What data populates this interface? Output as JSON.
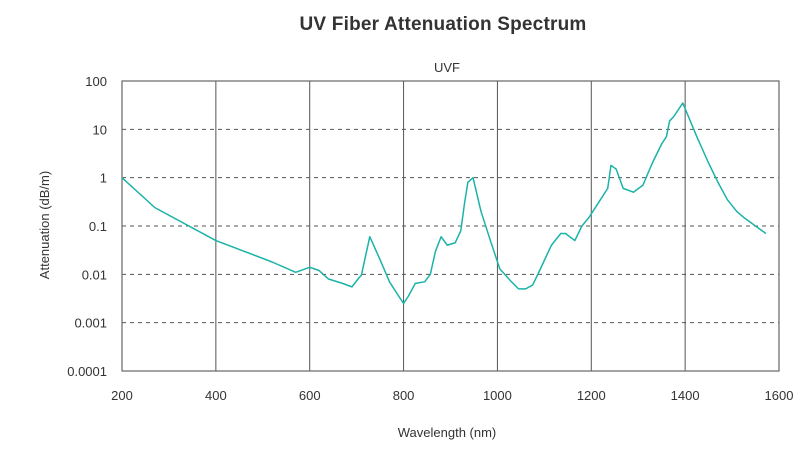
{
  "chart_data": {
    "type": "line",
    "title": "UV Fiber Attenuation Spectrum",
    "subtitle": "UVF",
    "xlabel": "Wavelength (nm)",
    "ylabel": "Attenuation (dB/m)",
    "xlim": [
      200,
      1600
    ],
    "ylim": [
      0.0001,
      100
    ],
    "yscale": "log",
    "x_ticks": [
      "200",
      "400",
      "600",
      "800",
      "1000",
      "1200",
      "1400",
      "1600"
    ],
    "y_ticks": [
      "100",
      "10",
      "1",
      "0.1",
      "0.01",
      "0.001",
      "0.0001"
    ],
    "grid": {
      "vertical": "solid",
      "horizontal": "dashed"
    },
    "line_color": "#1bb3a7",
    "series": [
      {
        "x": [
          200,
          270,
          400,
          520,
          570,
          600,
          620,
          640,
          670,
          690,
          705,
          710,
          728,
          750,
          770,
          790,
          800,
          810,
          825,
          845,
          857,
          868,
          880,
          893,
          910,
          922,
          930,
          937,
          948,
          965,
          985,
          1005,
          1030,
          1045,
          1060,
          1075,
          1090,
          1115,
          1135,
          1145,
          1165,
          1180,
          1195,
          1215,
          1235,
          1242,
          1253,
          1268,
          1290,
          1310,
          1330,
          1350,
          1360,
          1367,
          1375,
          1395,
          1425,
          1450,
          1470,
          1490,
          1510,
          1525,
          1550,
          1572
        ],
        "y": [
          1,
          0.24,
          0.05,
          0.018,
          0.011,
          0.014,
          0.012,
          0.008,
          0.0065,
          0.0055,
          0.0085,
          0.0095,
          0.06,
          0.02,
          0.007,
          0.0035,
          0.0025,
          0.0035,
          0.0065,
          0.007,
          0.01,
          0.03,
          0.06,
          0.04,
          0.045,
          0.08,
          0.3,
          0.8,
          1.0,
          0.2,
          0.05,
          0.013,
          0.007,
          0.005,
          0.005,
          0.006,
          0.012,
          0.04,
          0.07,
          0.07,
          0.05,
          0.1,
          0.15,
          0.3,
          0.6,
          1.8,
          1.5,
          0.6,
          0.5,
          0.7,
          2,
          5,
          7,
          15,
          18,
          35,
          7,
          2,
          0.8,
          0.35,
          0.2,
          0.15,
          0.1,
          0.07
        ]
      }
    ]
  }
}
